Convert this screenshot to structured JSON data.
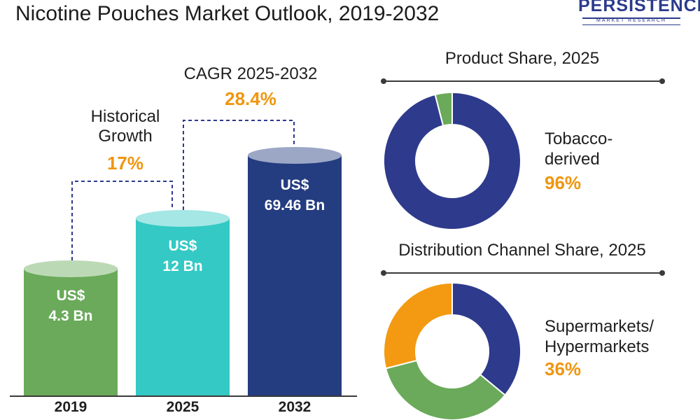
{
  "header": {
    "title": "Nicotine Pouches Market Outlook, 2019-2032",
    "logo_name": "PERSISTENCE",
    "logo_sub": "MARKET RESEARCH"
  },
  "annotations": {
    "historical_label_line1": "Historical",
    "historical_label_line2": "Growth",
    "historical_value": "17%",
    "cagr_label": "CAGR 2025-2032",
    "cagr_value": "28.4%"
  },
  "colors": {
    "bar_2019": "#6aaa5a",
    "bar_2025": "#34c9c4",
    "bar_2032": "#243c80",
    "donut_main": "#2e3a8c",
    "donut_green": "#6aaa5a",
    "donut_orange": "#f39a12",
    "accent_text": "#f0960f"
  },
  "chart_data": [
    {
      "type": "bar",
      "categories": [
        "2019",
        "2025",
        "2032"
      ],
      "values": [
        4.3,
        12,
        69.46
      ],
      "value_labels": [
        [
          "US$",
          "4.3 Bn"
        ],
        [
          "US$",
          "12 Bn"
        ],
        [
          "US$",
          "69.46 Bn"
        ]
      ],
      "unit": "US$ Bn"
    },
    {
      "type": "pie",
      "title": "Product Share, 2025",
      "highlight_label_lines": [
        "Tobacco-",
        "derived"
      ],
      "highlight_value": "96%",
      "slices": [
        {
          "value": 96
        },
        {
          "value": 4
        }
      ]
    },
    {
      "type": "pie",
      "title": "Distribution Channel Share, 2025",
      "highlight_label_lines": [
        "Supermarkets/",
        "Hypermarkets"
      ],
      "highlight_value": "36%",
      "slices": [
        {
          "value": 36
        },
        {
          "value": 35
        },
        {
          "value": 29
        }
      ]
    }
  ]
}
